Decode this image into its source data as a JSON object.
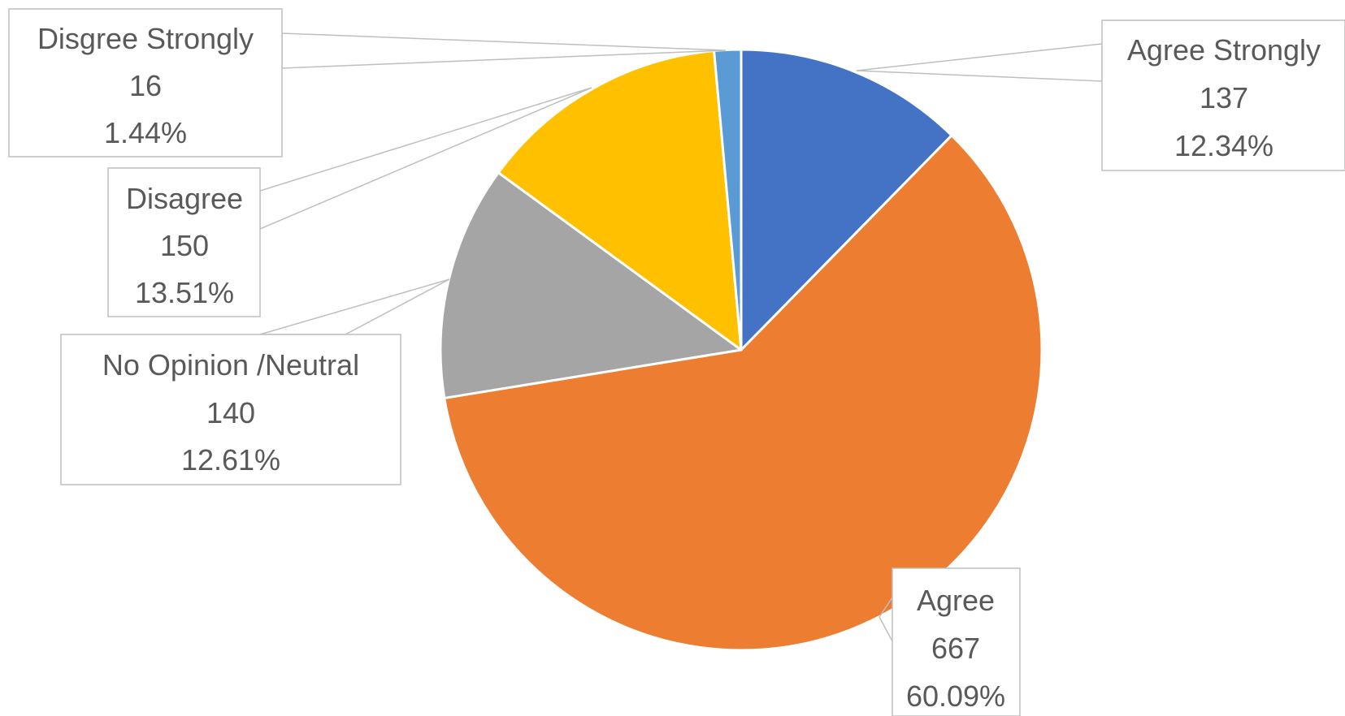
{
  "chart_data": {
    "type": "pie",
    "title": "",
    "slices": [
      {
        "name": "Agree Strongly",
        "value": 137,
        "percent": "12.34%",
        "color": "#4472C4"
      },
      {
        "name": "Agree",
        "value": 667,
        "percent": "60.09%",
        "color": "#ED7D31"
      },
      {
        "name": "No Opinion /Neutral",
        "value": 140,
        "percent": "12.61%",
        "color": "#A5A5A5"
      },
      {
        "name": "Disagree",
        "value": 150,
        "percent": "13.51%",
        "color": "#FFC000"
      },
      {
        "name": "Disgree Strongly",
        "value": 16,
        "percent": "1.44%",
        "color": "#5B9BD5"
      }
    ]
  }
}
